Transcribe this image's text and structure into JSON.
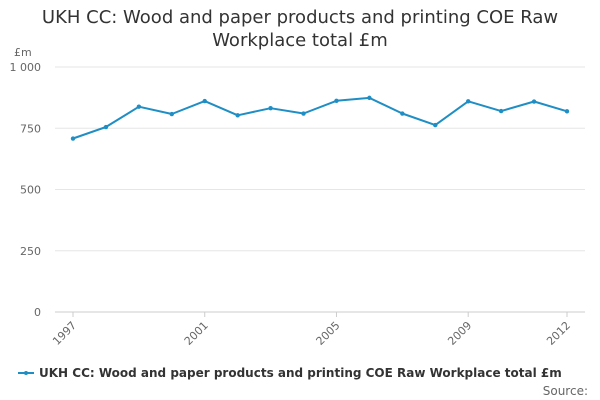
{
  "title_lines": [
    "UKH CC: Wood and paper products and printing COE Raw",
    "Workplace total £m"
  ],
  "source_label": "Source:",
  "colors": {
    "series": "#1f8ec4",
    "grid": "#e6e6e6",
    "text": "#333333",
    "tick_text": "#666666"
  },
  "chart_data": {
    "type": "line",
    "title": "UKH CC: Wood and paper products and printing COE Raw Workplace total £m",
    "y_unit": "£m",
    "xlabel": "",
    "ylabel": "",
    "x": [
      1997,
      1998,
      1999,
      2000,
      2001,
      2002,
      2003,
      2004,
      2005,
      2006,
      2007,
      2008,
      2009,
      2010,
      2011,
      2012
    ],
    "x_tick_labels": [
      "1997",
      "2001",
      "2005",
      "2009",
      "2012"
    ],
    "y_ticks": [
      0,
      250,
      500,
      750,
      1000
    ],
    "y_tick_labels": [
      "0",
      "250",
      "500",
      "750",
      "1 000"
    ],
    "ylim": [
      0,
      1000
    ],
    "grid": true,
    "legend_position": "bottom",
    "series": [
      {
        "name": "UKH CC: Wood and paper products and printing COE Raw Workplace total £m",
        "values": [
          708,
          755,
          838,
          808,
          861,
          803,
          832,
          810,
          862,
          874,
          810,
          763,
          860,
          820,
          859,
          819
        ]
      }
    ]
  }
}
